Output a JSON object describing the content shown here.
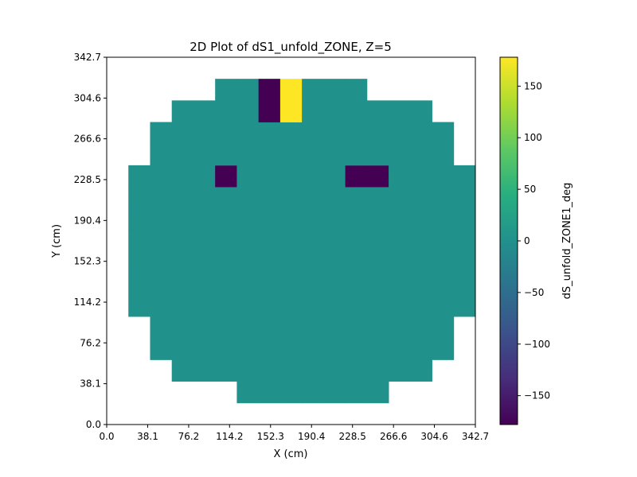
{
  "chart_data": {
    "type": "heatmap",
    "title": "2D Plot of dS1_unfold_ZONE, Z=5",
    "xlabel": "X (cm)",
    "ylabel": "Y (cm)",
    "colorbar_label": "dS_unfold_ZONE1_deg",
    "xlim": [
      0,
      342.7
    ],
    "ylim": [
      0,
      342.7
    ],
    "x_ticks": [
      "0.0",
      "38.1",
      "76.2",
      "114.2",
      "152.3",
      "190.4",
      "228.5",
      "266.6",
      "304.6",
      "342.7"
    ],
    "y_ticks": [
      "0.0",
      "38.1",
      "76.2",
      "114.2",
      "152.3",
      "190.4",
      "228.5",
      "266.6",
      "304.6",
      "342.7"
    ],
    "colorbar_range": [
      -178,
      178
    ],
    "colorbar_ticks": [
      "150",
      "100",
      "50",
      "0",
      "−50",
      "−100",
      "−150"
    ],
    "colorbar_tick_values": [
      150,
      100,
      50,
      0,
      -50,
      -100,
      -150
    ],
    "colormap": "viridis",
    "grid": false,
    "cell_size": 20.16,
    "rows": [
      [
        null,
        null,
        null,
        null,
        null,
        null,
        null,
        null,
        null,
        null,
        null,
        null,
        null,
        null,
        null,
        null,
        null
      ],
      [
        null,
        null,
        null,
        null,
        null,
        null,
        0,
        0,
        0,
        0,
        0,
        0,
        0,
        null,
        null,
        null,
        null
      ],
      [
        null,
        null,
        null,
        0,
        0,
        0,
        0,
        0,
        0,
        0,
        0,
        0,
        0,
        0,
        0,
        null,
        null
      ],
      [
        null,
        null,
        0,
        0,
        0,
        0,
        0,
        0,
        0,
        0,
        0,
        0,
        0,
        0,
        0,
        0,
        null
      ],
      [
        null,
        null,
        0,
        0,
        0,
        0,
        0,
        0,
        0,
        0,
        0,
        0,
        0,
        0,
        0,
        0,
        null
      ],
      [
        null,
        0,
        0,
        0,
        0,
        0,
        0,
        0,
        0,
        0,
        0,
        0,
        0,
        0,
        0,
        0,
        0
      ],
      [
        null,
        0,
        0,
        0,
        0,
        0,
        0,
        0,
        0,
        0,
        0,
        0,
        0,
        0,
        0,
        0,
        0
      ],
      [
        null,
        0,
        0,
        0,
        0,
        0,
        0,
        0,
        0,
        0,
        0,
        0,
        0,
        0,
        0,
        0,
        0
      ],
      [
        null,
        0,
        0,
        0,
        0,
        0,
        0,
        0,
        0,
        0,
        0,
        0,
        0,
        0,
        0,
        0,
        0
      ],
      [
        null,
        0,
        0,
        0,
        0,
        0,
        0,
        0,
        0,
        0,
        0,
        0,
        0,
        0,
        0,
        0,
        0
      ],
      [
        null,
        0,
        0,
        0,
        0,
        0,
        0,
        0,
        0,
        0,
        0,
        0,
        0,
        0,
        0,
        0,
        0
      ],
      [
        null,
        0,
        0,
        0,
        0,
        -178,
        0,
        0,
        0,
        0,
        0,
        -178,
        -178,
        0,
        0,
        0,
        0
      ],
      [
        null,
        null,
        0,
        0,
        0,
        0,
        0,
        0,
        0,
        0,
        0,
        0,
        0,
        0,
        0,
        0,
        null
      ],
      [
        null,
        null,
        0,
        0,
        0,
        0,
        0,
        0,
        0,
        0,
        0,
        0,
        0,
        0,
        0,
        0,
        null
      ],
      [
        null,
        null,
        null,
        0,
        0,
        0,
        0,
        -178,
        178,
        0,
        0,
        0,
        0,
        0,
        0,
        null,
        null
      ],
      [
        null,
        null,
        null,
        null,
        null,
        0,
        0,
        -178,
        178,
        0,
        0,
        0,
        null,
        null,
        null,
        null,
        null
      ],
      [
        null,
        null,
        null,
        null,
        null,
        null,
        null,
        null,
        null,
        null,
        null,
        null,
        null,
        null,
        null,
        null,
        null
      ]
    ]
  }
}
